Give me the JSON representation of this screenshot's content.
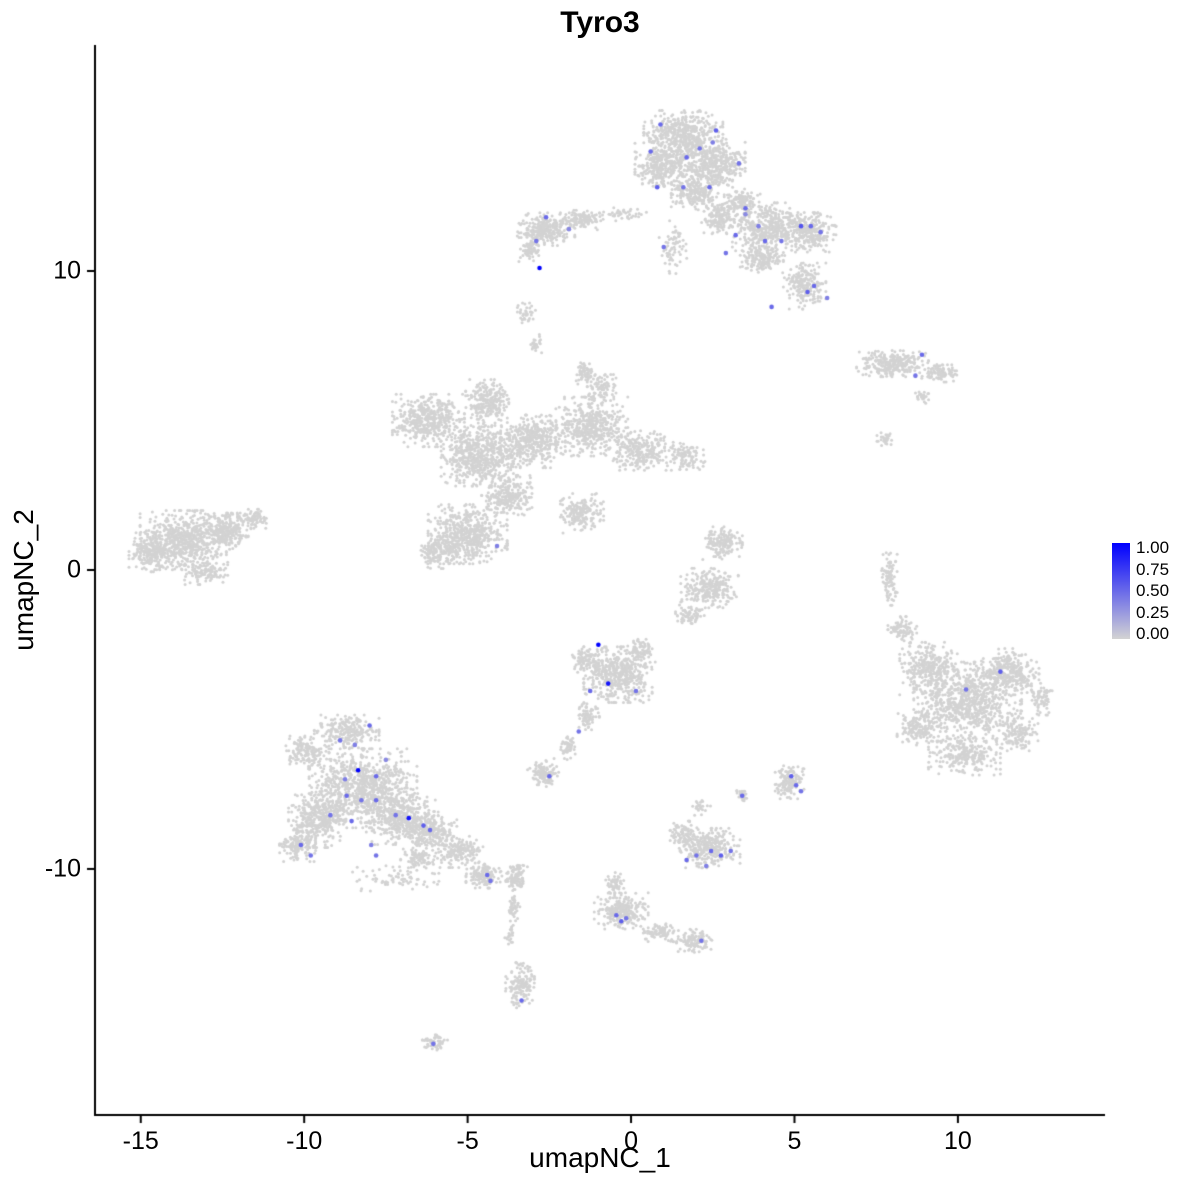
{
  "chart_data": {
    "type": "scatter",
    "title": "Tyro3",
    "xlabel": "umapNC_1",
    "ylabel": "umapNC_2",
    "xlim": [
      -16.4,
      14.5
    ],
    "ylim": [
      -18.23,
      17.56
    ],
    "grid": false,
    "legend_position": "right",
    "x_ticks": [
      {
        "value": -15,
        "label": "-15"
      },
      {
        "value": -10,
        "label": "-10"
      },
      {
        "value": -5,
        "label": "-5"
      },
      {
        "value": 0,
        "label": "0"
      },
      {
        "value": 5,
        "label": "5"
      },
      {
        "value": 10,
        "label": "10"
      }
    ],
    "y_ticks": [
      {
        "value": 10,
        "label": "10"
      },
      {
        "value": 0,
        "label": "0"
      },
      {
        "value": -10,
        "label": "-10"
      }
    ],
    "legend": {
      "ticks": [
        "1.00",
        "0.75",
        "0.50",
        "0.25",
        "0.00"
      ],
      "low_color": "#d3d3d3",
      "high_color": "#0000ff"
    },
    "colors": {
      "background": "#ffffff",
      "axis": "#000000",
      "base_point": "#d3d3d3"
    },
    "background_blobs": [
      [
        1.6,
        14.6,
        1.1,
        0.7,
        450
      ],
      [
        1.0,
        13.5,
        0.8,
        0.7,
        350
      ],
      [
        2.5,
        13.6,
        0.9,
        0.8,
        400
      ],
      [
        2.0,
        12.6,
        0.7,
        0.5,
        200
      ],
      [
        2.7,
        11.8,
        0.5,
        0.5,
        150
      ],
      [
        3.4,
        12.3,
        0.5,
        0.4,
        120
      ],
      [
        4.2,
        11.4,
        1.0,
        0.8,
        450
      ],
      [
        5.5,
        11.3,
        0.7,
        0.6,
        250
      ],
      [
        4.0,
        10.4,
        0.6,
        0.4,
        150
      ],
      [
        5.3,
        9.5,
        0.6,
        0.7,
        200
      ],
      [
        1.3,
        10.8,
        0.4,
        0.8,
        70
      ],
      [
        -2.6,
        11.4,
        0.8,
        0.5,
        280
      ],
      [
        -1.5,
        11.7,
        0.6,
        0.3,
        120
      ],
      [
        -3.1,
        10.7,
        0.3,
        0.35,
        70
      ],
      [
        -0.3,
        11.9,
        0.7,
        0.2,
        40
      ],
      [
        -3.2,
        8.6,
        0.25,
        0.3,
        35
      ],
      [
        -2.9,
        7.6,
        0.2,
        0.3,
        25
      ],
      [
        8.0,
        6.9,
        1.0,
        0.4,
        260
      ],
      [
        9.5,
        6.6,
        0.55,
        0.3,
        90
      ],
      [
        8.9,
        5.8,
        0.2,
        0.2,
        25
      ],
      [
        7.8,
        4.4,
        0.25,
        0.25,
        30
      ],
      [
        -6.2,
        5.0,
        1.0,
        0.8,
        450
      ],
      [
        -4.4,
        5.6,
        0.6,
        0.7,
        250
      ],
      [
        -4.6,
        3.8,
        1.1,
        0.9,
        600
      ],
      [
        -3.0,
        4.3,
        0.9,
        0.8,
        400
      ],
      [
        -1.2,
        4.8,
        1.0,
        0.9,
        450
      ],
      [
        0.3,
        4.0,
        0.9,
        0.6,
        250
      ],
      [
        1.6,
        3.8,
        0.6,
        0.4,
        100
      ],
      [
        -5.0,
        1.2,
        1.1,
        0.9,
        550
      ],
      [
        -5.9,
        0.6,
        0.6,
        0.5,
        150
      ],
      [
        -3.8,
        2.5,
        0.7,
        0.6,
        250
      ],
      [
        -1.5,
        1.9,
        0.6,
        0.6,
        180
      ],
      [
        -0.9,
        6.1,
        0.4,
        0.4,
        90
      ],
      [
        -1.4,
        6.6,
        0.3,
        0.4,
        60
      ],
      [
        -13.7,
        1.0,
        1.2,
        0.9,
        600
      ],
      [
        -14.7,
        0.6,
        0.6,
        0.6,
        200
      ],
      [
        -12.4,
        1.3,
        0.7,
        0.55,
        250
      ],
      [
        -11.6,
        1.7,
        0.4,
        0.3,
        80
      ],
      [
        -13.0,
        -0.1,
        0.6,
        0.35,
        120
      ],
      [
        -0.4,
        -3.5,
        0.95,
        0.85,
        450
      ],
      [
        -1.3,
        -3.0,
        0.45,
        0.4,
        100
      ],
      [
        0.3,
        -2.7,
        0.4,
        0.35,
        80
      ],
      [
        -1.3,
        -4.9,
        0.3,
        0.4,
        70
      ],
      [
        -1.9,
        -5.9,
        0.25,
        0.4,
        50
      ],
      [
        -2.7,
        -6.8,
        0.45,
        0.45,
        110
      ],
      [
        2.8,
        0.9,
        0.55,
        0.5,
        150
      ],
      [
        2.4,
        -0.6,
        0.8,
        0.6,
        250
      ],
      [
        1.8,
        -1.5,
        0.4,
        0.3,
        70
      ],
      [
        -8.2,
        -7.3,
        1.5,
        1.2,
        850
      ],
      [
        -9.6,
        -8.4,
        0.8,
        0.8,
        350
      ],
      [
        -7.0,
        -8.3,
        1.0,
        0.8,
        400
      ],
      [
        -6.1,
        -8.8,
        0.7,
        0.5,
        200
      ],
      [
        -9.9,
        -6.1,
        0.6,
        0.5,
        150
      ],
      [
        -8.7,
        -5.4,
        0.9,
        0.5,
        220
      ],
      [
        -10.2,
        -9.2,
        0.5,
        0.5,
        120
      ],
      [
        -5.3,
        -9.4,
        0.7,
        0.5,
        180
      ],
      [
        -4.5,
        -10.2,
        0.5,
        0.4,
        130
      ],
      [
        -6.5,
        -9.6,
        0.5,
        0.4,
        100
      ],
      [
        -7.2,
        -10.3,
        1.2,
        0.4,
        70
      ],
      [
        4.85,
        -7.1,
        0.4,
        0.5,
        130
      ],
      [
        3.4,
        -7.5,
        0.15,
        0.2,
        25
      ],
      [
        2.4,
        -9.3,
        0.85,
        0.6,
        300
      ],
      [
        1.6,
        -8.8,
        0.4,
        0.4,
        80
      ],
      [
        2.1,
        -7.9,
        0.3,
        0.3,
        25
      ],
      [
        -0.3,
        -11.4,
        0.75,
        0.55,
        250
      ],
      [
        0.9,
        -12.1,
        0.5,
        0.3,
        80
      ],
      [
        1.9,
        -12.4,
        0.55,
        0.35,
        110
      ],
      [
        -0.5,
        -10.5,
        0.25,
        0.35,
        50
      ],
      [
        -3.5,
        -10.3,
        0.3,
        0.45,
        110
      ],
      [
        -3.6,
        -11.3,
        0.18,
        0.4,
        45
      ],
      [
        -3.7,
        -12.2,
        0.15,
        0.3,
        22
      ],
      [
        -3.4,
        -13.9,
        0.4,
        0.7,
        140
      ],
      [
        -6.0,
        -15.8,
        0.35,
        0.25,
        55
      ],
      [
        10.3,
        -4.4,
        1.5,
        1.2,
        800
      ],
      [
        9.1,
        -3.3,
        0.8,
        0.8,
        300
      ],
      [
        11.6,
        -3.4,
        0.8,
        0.7,
        280
      ],
      [
        10.2,
        -6.2,
        1.0,
        0.6,
        250
      ],
      [
        8.8,
        -5.3,
        0.6,
        0.5,
        150
      ],
      [
        11.9,
        -5.5,
        0.5,
        0.5,
        120
      ],
      [
        8.3,
        -2.0,
        0.4,
        0.4,
        80
      ],
      [
        12.6,
        -4.3,
        0.3,
        0.5,
        70
      ],
      [
        7.9,
        -0.3,
        0.22,
        0.8,
        90
      ]
    ],
    "expressing_cells": [
      [
        0.9,
        14.9,
        0.5
      ],
      [
        2.6,
        14.7,
        0.55
      ],
      [
        2.1,
        14.1,
        0.45
      ],
      [
        0.6,
        14.0,
        0.5
      ],
      [
        1.7,
        13.8,
        0.5
      ],
      [
        3.3,
        13.6,
        0.45
      ],
      [
        2.5,
        14.3,
        0.4
      ],
      [
        0.8,
        12.8,
        0.55
      ],
      [
        1.6,
        12.8,
        0.45
      ],
      [
        2.4,
        12.8,
        0.5
      ],
      [
        3.5,
        12.1,
        0.5
      ],
      [
        1.0,
        10.8,
        0.45
      ],
      [
        3.2,
        11.2,
        0.5
      ],
      [
        2.9,
        10.6,
        0.45
      ],
      [
        5.2,
        11.5,
        0.6
      ],
      [
        5.5,
        11.5,
        0.5
      ],
      [
        5.8,
        11.3,
        0.45
      ],
      [
        4.1,
        11.0,
        0.5
      ],
      [
        4.6,
        11.0,
        0.45
      ],
      [
        3.9,
        11.5,
        0.4
      ],
      [
        5.6,
        9.5,
        0.5
      ],
      [
        5.4,
        9.3,
        0.55
      ],
      [
        6.0,
        9.1,
        0.4
      ],
      [
        4.3,
        8.8,
        0.5
      ],
      [
        3.5,
        11.9,
        0.35
      ],
      [
        -2.6,
        11.8,
        0.5
      ],
      [
        -2.9,
        11.0,
        0.45
      ],
      [
        -2.8,
        10.1,
        1.0
      ],
      [
        -1.9,
        11.4,
        0.35
      ],
      [
        8.9,
        7.2,
        0.5
      ],
      [
        8.7,
        6.5,
        0.45
      ],
      [
        -4.1,
        0.8,
        0.4
      ],
      [
        -1.0,
        -2.5,
        1.0
      ],
      [
        -0.7,
        -3.8,
        0.9
      ],
      [
        -1.25,
        -4.05,
        0.5
      ],
      [
        0.15,
        -4.05,
        0.45
      ],
      [
        -1.6,
        -5.4,
        0.45
      ],
      [
        -2.5,
        -6.9,
        0.5
      ],
      [
        -8.0,
        -5.2,
        0.5
      ],
      [
        -8.9,
        -5.7,
        0.45
      ],
      [
        -7.8,
        -6.9,
        0.5
      ],
      [
        -8.35,
        -6.7,
        1.0
      ],
      [
        -8.7,
        -7.55,
        0.5
      ],
      [
        -8.25,
        -7.7,
        0.45
      ],
      [
        -7.8,
        -7.7,
        0.5
      ],
      [
        -9.2,
        -8.2,
        0.45
      ],
      [
        -8.55,
        -8.4,
        0.5
      ],
      [
        -7.2,
        -8.2,
        0.45
      ],
      [
        -6.8,
        -8.3,
        0.9
      ],
      [
        -6.35,
        -8.55,
        0.55
      ],
      [
        -6.15,
        -8.7,
        0.5
      ],
      [
        -10.1,
        -9.2,
        0.5
      ],
      [
        -9.8,
        -9.55,
        0.45
      ],
      [
        -7.95,
        -9.2,
        0.4
      ],
      [
        -7.8,
        -9.55,
        0.45
      ],
      [
        -4.4,
        -10.2,
        0.5
      ],
      [
        -4.3,
        -10.4,
        0.45
      ],
      [
        -8.45,
        -5.85,
        0.4
      ],
      [
        -7.5,
        -6.35,
        0.35
      ],
      [
        -8.75,
        -7.0,
        0.4
      ],
      [
        4.9,
        -6.9,
        0.55
      ],
      [
        5.05,
        -7.2,
        0.5
      ],
      [
        5.2,
        -7.4,
        0.45
      ],
      [
        3.4,
        -7.55,
        0.5
      ],
      [
        1.7,
        -9.7,
        0.5
      ],
      [
        2.0,
        -9.55,
        0.45
      ],
      [
        2.45,
        -9.4,
        0.5
      ],
      [
        2.75,
        -9.55,
        0.55
      ],
      [
        3.05,
        -9.4,
        0.45
      ],
      [
        2.3,
        -9.9,
        0.4
      ],
      [
        -0.45,
        -11.55,
        0.5
      ],
      [
        -0.3,
        -11.75,
        0.55
      ],
      [
        -0.15,
        -11.65,
        0.45
      ],
      [
        2.15,
        -12.4,
        0.45
      ],
      [
        -3.35,
        -14.4,
        0.5
      ],
      [
        -6.05,
        -15.85,
        0.45
      ],
      [
        11.3,
        -3.4,
        0.55
      ],
      [
        10.25,
        -4.0,
        0.45
      ]
    ]
  }
}
